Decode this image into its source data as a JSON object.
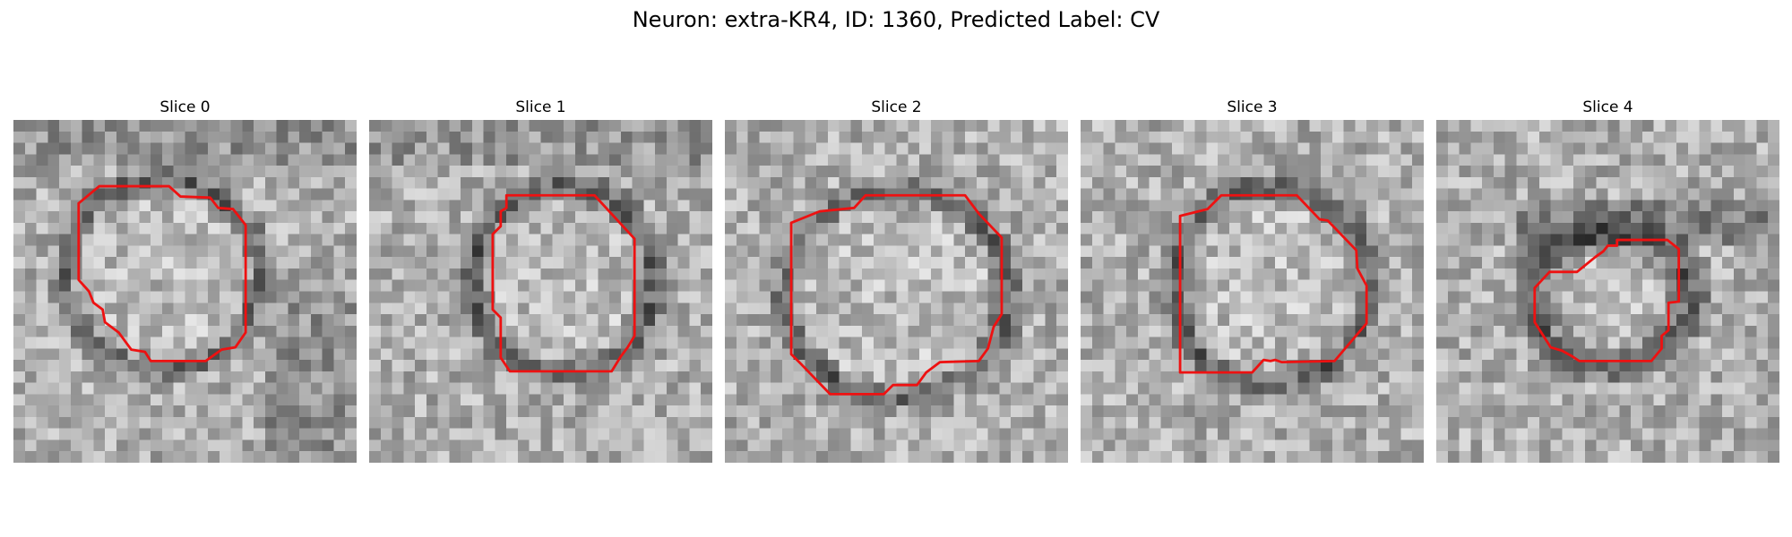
{
  "figure": {
    "title": "Neuron: extra-KR4, ID: 1360, Predicted Label: CV"
  },
  "panels": [
    {
      "label": "Slice 0"
    },
    {
      "label": "Slice 1"
    },
    {
      "label": "Slice 2"
    },
    {
      "label": "Slice 3"
    },
    {
      "label": "Slice 4"
    }
  ],
  "colors": {
    "contour": "#ee1111",
    "background": "#ffffff"
  }
}
